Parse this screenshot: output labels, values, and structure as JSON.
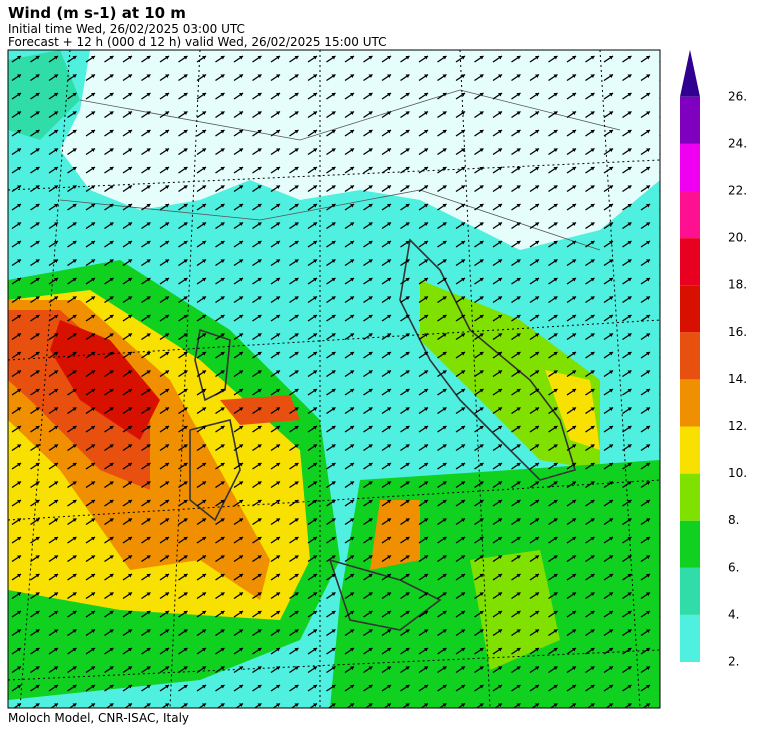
{
  "header": {
    "title": "Wind (m s-1) at 10 m",
    "initial_time": "Initial time  Wed, 26/02/2025  03:00 UTC",
    "forecast": "Forecast  +  12 h  (000 d 12 h)  valid Wed, 26/02/2025 15:00 UTC"
  },
  "colorbar": {
    "labels": [
      "2.",
      "4.",
      "6.",
      "8.",
      "10.",
      "12.",
      "14.",
      "16.",
      "18.",
      "20.",
      "22.",
      "24.",
      "26."
    ],
    "colors": [
      "#4ff0e0",
      "#30dca8",
      "#10d020",
      "#80e000",
      "#f8e000",
      "#f09000",
      "#e85010",
      "#d81000",
      "#e80020",
      "#ff1090",
      "#f000f0",
      "#8000c0",
      "#300090"
    ]
  },
  "footer": "Moloch Model, CNR-ISAC, Italy"
}
